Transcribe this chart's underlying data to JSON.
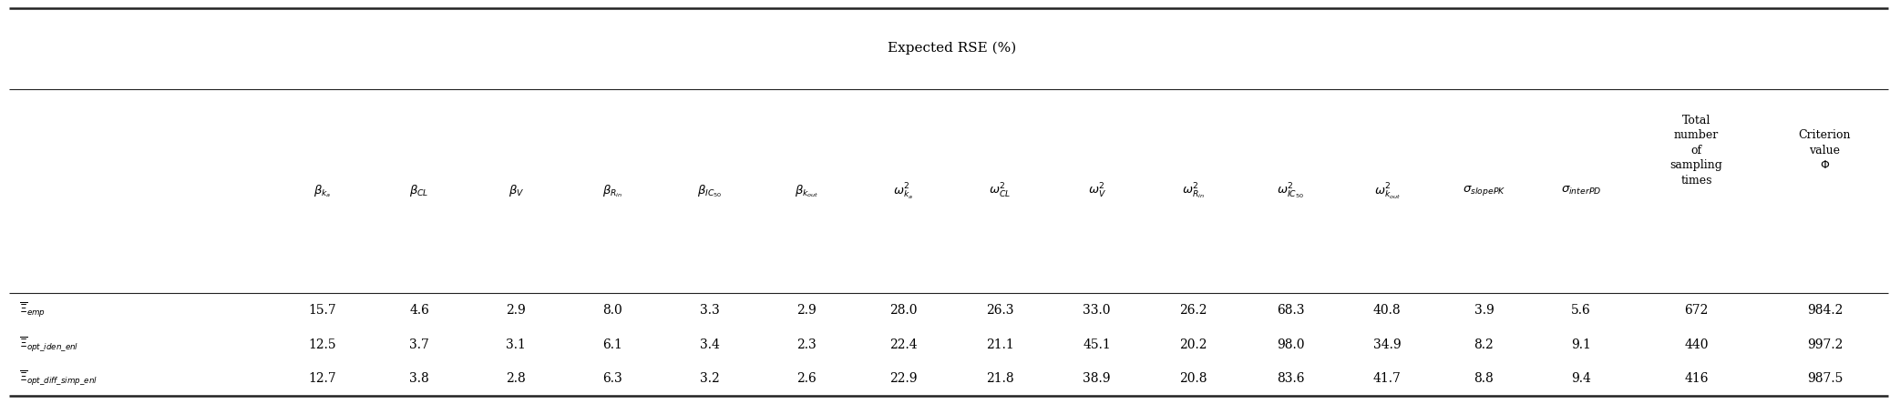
{
  "col_headers_math": [
    "$\\beta_{k_a}$",
    "$\\beta_{CL}$",
    "$\\beta_V$",
    "$\\beta_{R_{in}}$",
    "$\\beta_{IC_{50}}$",
    "$\\beta_{k_{out}}$",
    "$\\omega^2_{k_a}$",
    "$\\omega^2_{CL}$",
    "$\\omega^2_V$",
    "$\\omega^2_{R_{in}}$",
    "$\\omega^2_{IC_{50}}$",
    "$\\omega^2_{k_{out}}$",
    "$\\sigma_{slopePK}$",
    "$\\sigma_{interPD}$"
  ],
  "col_header_total": "Total\nnumber\nof\nsampling\ntimes",
  "col_header_criterion": "Criterion\nvalue\n$\\Phi$",
  "group_header": "Expected RSE (%)",
  "row_label_xi": "$\\Xi$",
  "row_subscripts": [
    "emp",
    "opt_iden_enl",
    "opt_diff_simp_enl"
  ],
  "data": [
    [
      15.7,
      4.6,
      2.9,
      8.0,
      3.3,
      2.9,
      28.0,
      26.3,
      33.0,
      26.2,
      68.3,
      40.8,
      3.9,
      5.6,
      672,
      984.2
    ],
    [
      12.5,
      3.7,
      3.1,
      6.1,
      3.4,
      2.3,
      22.4,
      21.1,
      45.1,
      20.2,
      98.0,
      34.9,
      8.2,
      9.1,
      440,
      997.2
    ],
    [
      12.7,
      3.8,
      2.8,
      6.3,
      3.2,
      2.6,
      22.9,
      21.8,
      38.9,
      20.8,
      83.6,
      41.7,
      8.8,
      9.4,
      416,
      987.5
    ]
  ],
  "bg_color": "#ffffff",
  "text_color": "#000000",
  "line_color": "#222222"
}
